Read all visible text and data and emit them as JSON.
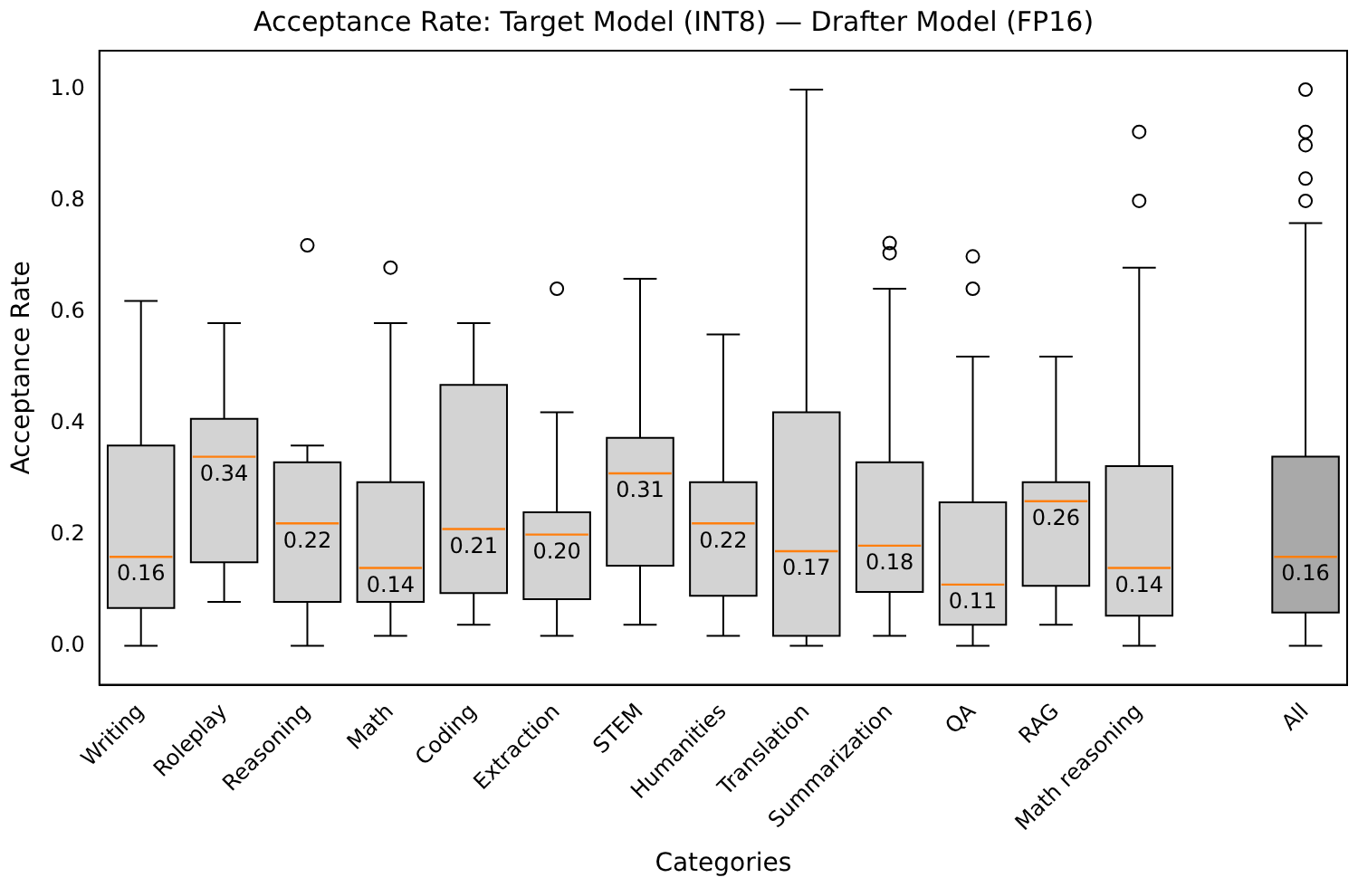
{
  "chart_data": {
    "type": "box",
    "title": "Acceptance Rate: Target Model (INT8) — Drafter Model (FP16)",
    "xlabel": "Categories",
    "ylabel": "Acceptance Rate",
    "categories": [
      "Writing",
      "Roleplay",
      "Reasoning",
      "Math",
      "Coding",
      "Extraction",
      "STEM",
      "Humanities",
      "Translation",
      "Summarization",
      "QA",
      "RAG",
      "Math reasoning",
      null,
      "All"
    ],
    "boxes": [
      {
        "low": 0,
        "q1": 0.068,
        "median": 0.16,
        "q3": 0.36,
        "high": 0.62
      },
      {
        "low": 0.079,
        "q1": 0.15,
        "median": 0.34,
        "q3": 0.408,
        "high": 0.58
      },
      {
        "low": 0,
        "q1": 0.079,
        "median": 0.22,
        "q3": 0.33,
        "high": 0.36,
        "outliers": [
          0.72
        ]
      },
      {
        "low": 0.018,
        "q1": 0.079,
        "median": 0.14,
        "q3": 0.294,
        "high": 0.58,
        "outliers": [
          0.68
        ]
      },
      {
        "low": 0.038,
        "q1": 0.095,
        "median": 0.21,
        "q3": 0.469,
        "high": 0.58
      },
      {
        "low": 0.018,
        "q1": 0.084,
        "median": 0.2,
        "q3": 0.24,
        "high": 0.42,
        "outliers": [
          0.642
        ]
      },
      {
        "low": 0.038,
        "q1": 0.144,
        "median": 0.31,
        "q3": 0.374,
        "high": 0.66
      },
      {
        "low": 0.018,
        "q1": 0.09,
        "median": 0.22,
        "q3": 0.294,
        "high": 0.56
      },
      {
        "low": 0,
        "q1": 0.018,
        "median": 0.17,
        "q3": 0.42,
        "high": 1.0
      },
      {
        "low": 0.018,
        "q1": 0.097,
        "median": 0.18,
        "q3": 0.33,
        "high": 0.642,
        "outliers": [
          0.706,
          0.724
        ]
      },
      {
        "low": 0,
        "q1": 0.038,
        "median": 0.11,
        "q3": 0.258,
        "high": 0.52,
        "outliers": [
          0.642,
          0.7
        ]
      },
      {
        "low": 0.038,
        "q1": 0.108,
        "median": 0.26,
        "q3": 0.294,
        "high": 0.52
      },
      {
        "low": 0,
        "q1": 0.054,
        "median": 0.14,
        "q3": 0.323,
        "high": 0.68,
        "outliers": [
          0.8,
          0.924
        ]
      },
      null,
      {
        "low": 0,
        "q1": 0.06,
        "median": 0.16,
        "q3": 0.34,
        "high": 0.76,
        "outliers": [
          0.8,
          0.84,
          0.9,
          0.924,
          1.0
        ]
      }
    ],
    "colors": [
      "#d3d3d3",
      "#d3d3d3",
      "#d3d3d3",
      "#d3d3d3",
      "#d3d3d3",
      "#d3d3d3",
      "#d3d3d3",
      "#d3d3d3",
      "#d3d3d3",
      "#d3d3d3",
      "#d3d3d3",
      "#d3d3d3",
      "#d3d3d3",
      null,
      "#a9a9a9"
    ],
    "value_labels": [
      "0.16",
      "0.34",
      "0.22",
      "0.14",
      "0.21",
      "0.20",
      "0.31",
      "0.22",
      "0.17",
      "0.18",
      "0.11",
      "0.26",
      "0.14",
      null,
      "0.16"
    ],
    "ylim": [
      -0.07,
      1.07
    ],
    "yticks": [
      {
        "value": 0,
        "label": "0.0"
      },
      {
        "value": 0.2,
        "label": "0.2"
      },
      {
        "value": 0.4,
        "label": "0.4"
      },
      {
        "value": 0.6,
        "label": "0.6"
      },
      {
        "value": 0.8,
        "label": "0.8"
      },
      {
        "value": 1,
        "label": "1.0"
      }
    ],
    "grid": false,
    "legend": false
  }
}
